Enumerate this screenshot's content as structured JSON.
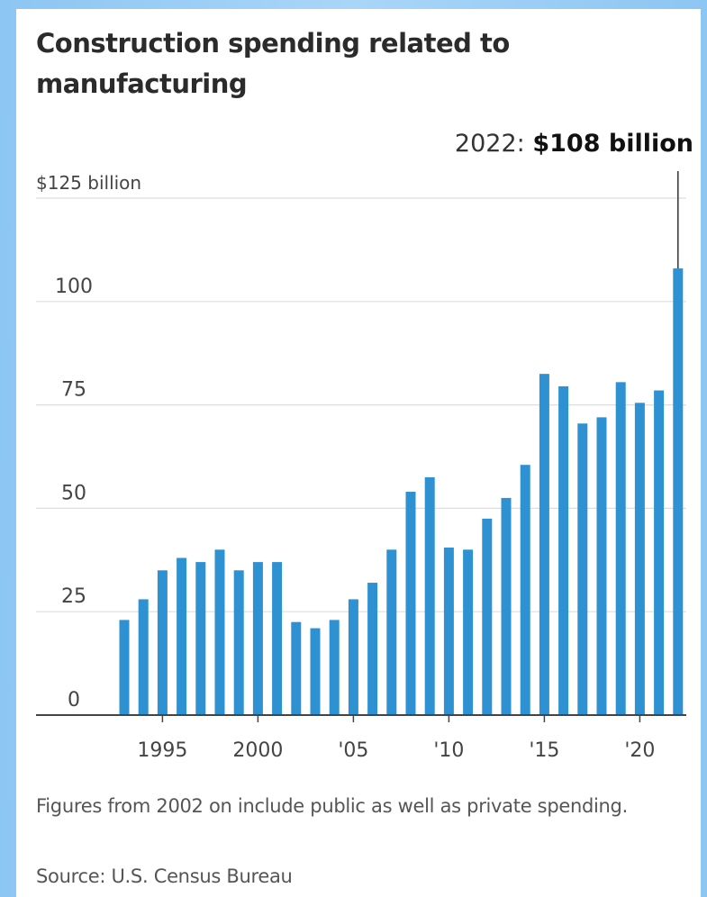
{
  "chart_data": {
    "type": "bar",
    "title": "Construction spending related to manufacturing",
    "xlabel": "",
    "ylabel": "",
    "x": [
      1993,
      1994,
      1995,
      1996,
      1997,
      1998,
      1999,
      2000,
      2001,
      2002,
      2003,
      2004,
      2005,
      2006,
      2007,
      2008,
      2009,
      2010,
      2011,
      2012,
      2013,
      2014,
      2015,
      2016,
      2017,
      2018,
      2019,
      2020,
      2021,
      2022
    ],
    "values": [
      23,
      28,
      35,
      38,
      37,
      40,
      35,
      37,
      37,
      22.5,
      21,
      23,
      28,
      32,
      40,
      54,
      57.5,
      40.5,
      40,
      47.5,
      52.5,
      60.5,
      82.5,
      79.5,
      70.5,
      72,
      80.5,
      75.5,
      78.5,
      108
    ],
    "ylim": [
      0,
      125
    ],
    "y_ticks": [
      0,
      25,
      50,
      75,
      100,
      125
    ],
    "y_tick_labels": [
      "0",
      "25",
      "50",
      "75",
      "100",
      "$125 billion"
    ],
    "x_ticks": [
      1995,
      2000,
      2005,
      2010,
      2015,
      2020
    ],
    "x_tick_labels": [
      "1995",
      "2000",
      "'05",
      "'10",
      "'15",
      "'20"
    ],
    "grid": true,
    "bar_color": "#2e91d2",
    "annotation": {
      "year": 2022,
      "prefix": "2022: ",
      "value_text": "$108 billion"
    }
  },
  "footnote": "Figures from 2002 on include public as well as private spending.",
  "source": "Source: U.S. Census Bureau"
}
